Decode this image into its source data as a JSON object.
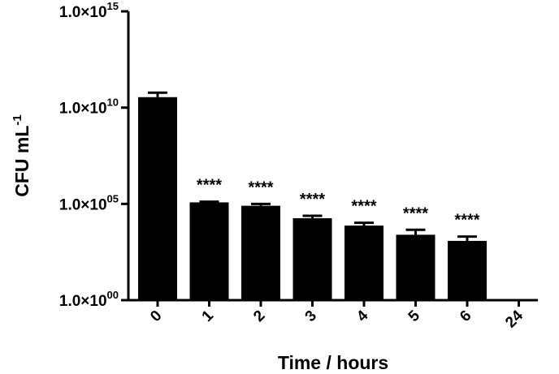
{
  "chart_data": {
    "type": "bar",
    "title": "",
    "xlabel": "Time / hours",
    "ylabel": "CFU mL",
    "ylabel_superscript": "-1",
    "yscale": "log",
    "ylim": [
      1,
      1000000000000000.0
    ],
    "yticks": [
      {
        "value": 1,
        "mantissa": "1.0×10",
        "exponent": "00"
      },
      {
        "value": 100000,
        "mantissa": "1.0×10",
        "exponent": "05"
      },
      {
        "value": 10000000000,
        "mantissa": "1.0×10",
        "exponent": "10"
      },
      {
        "value": 1000000000000000.0,
        "mantissa": "1.0×10",
        "exponent": "15"
      }
    ],
    "categories": [
      "0",
      "1",
      "2",
      "3",
      "4",
      "5",
      "6",
      "24"
    ],
    "values": [
      35000000000.0,
      120000,
      80000,
      18000,
      7500,
      2500,
      1200,
      null
    ],
    "error_upper": [
      60000000000.0,
      130000,
      100000,
      24000,
      10500,
      4500,
      2000,
      null
    ],
    "significance": [
      "",
      "****",
      "****",
      "****",
      "****",
      "****",
      "****",
      ""
    ],
    "bar_color": "#000000"
  }
}
